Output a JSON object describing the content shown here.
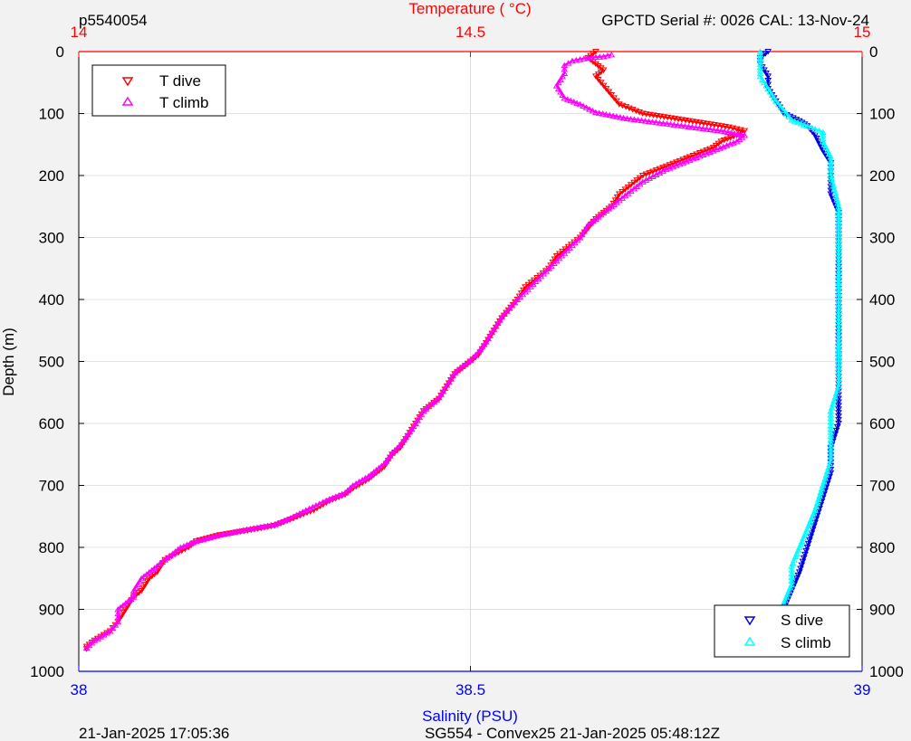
{
  "header": {
    "left": "p5540054",
    "right": "GPCTD Serial #: 0026 CAL: 13-Nov-24"
  },
  "footer": {
    "left": "21-Jan-2025 17:05:36",
    "center": "SG554 - Convex25 21-Jan-2025 05:48:12Z"
  },
  "chart_data": {
    "type": "scatter",
    "y_axis": {
      "label": "Depth (m)",
      "range": [
        0,
        1000
      ],
      "reversed": true,
      "ticks": [
        0,
        100,
        200,
        300,
        400,
        500,
        600,
        700,
        800,
        900,
        1000
      ]
    },
    "top_axis": {
      "label": "Temperature (   °C)",
      "range": [
        14,
        15
      ],
      "ticks": [
        14,
        14.5,
        15
      ],
      "tick_labels": [
        "14",
        "14.5",
        "15"
      ],
      "color": "#ff0000"
    },
    "bottom_axis": {
      "label": "Salinity (PSU)",
      "range": [
        38,
        39
      ],
      "ticks": [
        38,
        38.5,
        39
      ],
      "tick_labels": [
        "38",
        "38.5",
        "39"
      ],
      "color": "#0000ff"
    },
    "grid": true,
    "legends": [
      {
        "placement": "top-left",
        "entries": [
          "T dive",
          "T climb"
        ]
      },
      {
        "placement": "bottom-right",
        "entries": [
          "S dive",
          "S climb"
        ]
      }
    ],
    "series": [
      {
        "name": "T dive",
        "axis": "temperature",
        "color": "#ff0000",
        "marker": "triangle-down",
        "points": [
          [
            14.66,
            0
          ],
          [
            14.65,
            10
          ],
          [
            14.66,
            20
          ],
          [
            14.67,
            30
          ],
          [
            14.66,
            40
          ],
          [
            14.67,
            55
          ],
          [
            14.68,
            70
          ],
          [
            14.69,
            85
          ],
          [
            14.72,
            100
          ],
          [
            14.77,
            110
          ],
          [
            14.83,
            122
          ],
          [
            14.85,
            128
          ],
          [
            14.84,
            135
          ],
          [
            14.82,
            145
          ],
          [
            14.81,
            155
          ],
          [
            14.78,
            170
          ],
          [
            14.75,
            185
          ],
          [
            14.72,
            200
          ],
          [
            14.69,
            230
          ],
          [
            14.68,
            250
          ],
          [
            14.66,
            270
          ],
          [
            14.64,
            300
          ],
          [
            14.61,
            330
          ],
          [
            14.6,
            350
          ],
          [
            14.57,
            380
          ],
          [
            14.56,
            400
          ],
          [
            14.54,
            430
          ],
          [
            14.53,
            450
          ],
          [
            14.52,
            470
          ],
          [
            14.51,
            490
          ],
          [
            14.5,
            500
          ],
          [
            14.48,
            520
          ],
          [
            14.47,
            540
          ],
          [
            14.46,
            560
          ],
          [
            14.44,
            580
          ],
          [
            14.43,
            600
          ],
          [
            14.42,
            620
          ],
          [
            14.41,
            640
          ],
          [
            14.4,
            650
          ],
          [
            14.39,
            670
          ],
          [
            14.37,
            690
          ],
          [
            14.35,
            705
          ],
          [
            14.34,
            715
          ],
          [
            14.32,
            725
          ],
          [
            14.3,
            740
          ],
          [
            14.27,
            755
          ],
          [
            14.25,
            765
          ],
          [
            14.22,
            772
          ],
          [
            14.18,
            780
          ],
          [
            14.15,
            790
          ],
          [
            14.14,
            800
          ],
          [
            14.11,
            820
          ],
          [
            14.1,
            840
          ],
          [
            14.09,
            850
          ],
          [
            14.08,
            870
          ],
          [
            14.07,
            880
          ],
          [
            14.06,
            900
          ],
          [
            14.05,
            920
          ],
          [
            14.04,
            935
          ],
          [
            14.02,
            950
          ],
          [
            14.01,
            960
          ],
          [
            14.01,
            964
          ]
        ]
      },
      {
        "name": "T climb",
        "axis": "temperature",
        "color": "#ff00ff",
        "marker": "triangle-up",
        "points": [
          [
            14.01,
            962
          ],
          [
            14.02,
            950
          ],
          [
            14.04,
            935
          ],
          [
            14.05,
            920
          ],
          [
            14.05,
            900
          ],
          [
            14.07,
            880
          ],
          [
            14.07,
            870
          ],
          [
            14.08,
            850
          ],
          [
            14.09,
            840
          ],
          [
            14.11,
            820
          ],
          [
            14.13,
            800
          ],
          [
            14.15,
            790
          ],
          [
            14.18,
            780
          ],
          [
            14.21,
            772
          ],
          [
            14.25,
            763
          ],
          [
            14.27,
            753
          ],
          [
            14.29,
            740
          ],
          [
            14.32,
            722
          ],
          [
            14.34,
            712
          ],
          [
            14.35,
            700
          ],
          [
            14.37,
            685
          ],
          [
            14.39,
            665
          ],
          [
            14.4,
            648
          ],
          [
            14.41,
            635
          ],
          [
            14.42,
            618
          ],
          [
            14.43,
            600
          ],
          [
            14.44,
            580
          ],
          [
            14.46,
            558
          ],
          [
            14.47,
            538
          ],
          [
            14.48,
            518
          ],
          [
            14.5,
            498
          ],
          [
            14.51,
            485
          ],
          [
            14.52,
            468
          ],
          [
            14.53,
            448
          ],
          [
            14.54,
            428
          ],
          [
            14.56,
            400
          ],
          [
            14.58,
            375
          ],
          [
            14.6,
            350
          ],
          [
            14.62,
            325
          ],
          [
            14.64,
            300
          ],
          [
            14.65,
            280
          ],
          [
            14.67,
            260
          ],
          [
            14.69,
            240
          ],
          [
            14.72,
            210
          ],
          [
            14.75,
            190
          ],
          [
            14.78,
            175
          ],
          [
            14.81,
            160
          ],
          [
            14.84,
            145
          ],
          [
            14.85,
            135
          ],
          [
            14.82,
            128
          ],
          [
            14.76,
            118
          ],
          [
            14.7,
            108
          ],
          [
            14.66,
            98
          ],
          [
            14.64,
            85
          ],
          [
            14.62,
            75
          ],
          [
            14.61,
            55
          ],
          [
            14.62,
            35
          ],
          [
            14.62,
            22
          ],
          [
            14.63,
            15
          ],
          [
            14.65,
            10
          ],
          [
            14.67,
            8
          ],
          [
            14.68,
            5
          ]
        ]
      },
      {
        "name": "S dive",
        "axis": "salinity",
        "color": "#0000e0",
        "marker": "triangle-down",
        "points": [
          [
            38.88,
            0
          ],
          [
            38.87,
            10
          ],
          [
            38.87,
            20
          ],
          [
            38.88,
            40
          ],
          [
            38.88,
            60
          ],
          [
            38.89,
            80
          ],
          [
            38.9,
            100
          ],
          [
            38.92,
            112
          ],
          [
            38.93,
            120
          ],
          [
            38.94,
            135
          ],
          [
            38.95,
            160
          ],
          [
            38.96,
            180
          ],
          [
            38.96,
            200
          ],
          [
            38.96,
            230
          ],
          [
            38.97,
            260
          ],
          [
            38.97,
            300
          ],
          [
            38.97,
            400
          ],
          [
            38.97,
            500
          ],
          [
            38.97,
            560
          ],
          [
            38.97,
            600
          ],
          [
            38.96,
            640
          ],
          [
            38.96,
            680
          ],
          [
            38.95,
            720
          ],
          [
            38.94,
            760
          ],
          [
            38.93,
            800
          ],
          [
            38.92,
            840
          ],
          [
            38.91,
            870
          ],
          [
            38.9,
            900
          ],
          [
            38.9,
            930
          ],
          [
            38.9,
            950
          ]
        ]
      },
      {
        "name": "S climb",
        "axis": "salinity",
        "color": "#00ffff",
        "marker": "triangle-up",
        "points": [
          [
            38.89,
            965
          ],
          [
            38.89,
            950
          ],
          [
            38.9,
            920
          ],
          [
            38.9,
            890
          ],
          [
            38.91,
            860
          ],
          [
            38.91,
            830
          ],
          [
            38.92,
            800
          ],
          [
            38.93,
            770
          ],
          [
            38.94,
            740
          ],
          [
            38.95,
            700
          ],
          [
            38.96,
            660
          ],
          [
            38.96,
            620
          ],
          [
            38.96,
            580
          ],
          [
            38.97,
            540
          ],
          [
            38.97,
            500
          ],
          [
            38.97,
            450
          ],
          [
            38.97,
            400
          ],
          [
            38.97,
            350
          ],
          [
            38.97,
            300
          ],
          [
            38.97,
            250
          ],
          [
            38.96,
            200
          ],
          [
            38.96,
            170
          ],
          [
            38.95,
            145
          ],
          [
            38.95,
            130
          ],
          [
            38.94,
            125
          ],
          [
            38.93,
            120
          ],
          [
            38.91,
            110
          ],
          [
            38.9,
            95
          ],
          [
            38.89,
            80
          ],
          [
            38.88,
            60
          ],
          [
            38.87,
            40
          ],
          [
            38.87,
            25
          ],
          [
            38.87,
            10
          ],
          [
            38.87,
            0
          ]
        ]
      }
    ]
  }
}
